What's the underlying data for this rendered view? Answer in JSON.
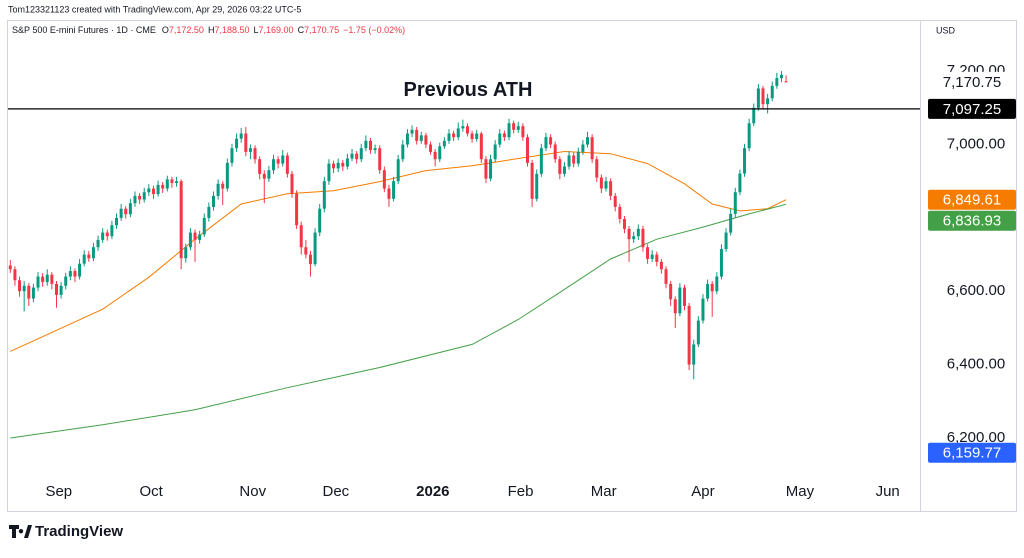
{
  "chart_data": {
    "type": "candlestick",
    "credit": "Tom123321123 created with TradingView.com, Apr 29, 2026 03:22 UTC-5",
    "legend": {
      "symbol": "S&P 500 E-mini Futures · 1D · CME",
      "fields": [
        {
          "key": "O",
          "text": "7,172.50"
        },
        {
          "key": "H",
          "text": "7,188.50"
        },
        {
          "key": "L",
          "text": "7,169.00"
        },
        {
          "key": "C",
          "text": "7,170.75"
        }
      ],
      "change": "−1.75 (−0.02%)"
    },
    "currency": "USD",
    "brand": "TradingView",
    "annotation": "Previous ATH",
    "up_color": "#089981",
    "down_color": "#f23645",
    "xlim": [
      -0.5,
      197
    ],
    "xticks": [
      {
        "value": 10.5,
        "label": "Sep"
      },
      {
        "value": 30.5,
        "label": "Oct"
      },
      {
        "value": 52.5,
        "label": "Nov"
      },
      {
        "value": 70.5,
        "label": "Dec"
      },
      {
        "value": 91.5,
        "label": "2026"
      },
      {
        "value": 110.5,
        "label": "Feb"
      },
      {
        "value": 128.5,
        "label": "Mar"
      },
      {
        "value": 150,
        "label": "Apr"
      },
      {
        "value": 171,
        "label": "May"
      },
      {
        "value": 190,
        "label": "Jun"
      }
    ],
    "ylim": [
      6099,
      7285
    ],
    "yticks": [
      {
        "value": 7200,
        "label": "7,200.00"
      },
      {
        "value": 7000,
        "label": "7,000.00"
      },
      {
        "value": 6600,
        "label": "6,600.00"
      },
      {
        "value": 6400,
        "label": "6,400.00"
      },
      {
        "value": 6200,
        "label": "6,200.00"
      }
    ],
    "hline": {
      "value": 7097.25,
      "color": "#000000"
    },
    "price_labels": [
      {
        "value": 7170.75,
        "label": "7,170.75",
        "color": "#ffffff",
        "text_color": "#131722"
      },
      {
        "value": 7097.25,
        "label": "7,097.25",
        "color": "#000000",
        "text_color": "#ffffff"
      },
      {
        "value": 6849.61,
        "label": "6,849.61",
        "color": "#f57c00",
        "text_color": "#ffffff"
      },
      {
        "value": 6836.93,
        "label": "6,836.93",
        "color": "#43a047",
        "text_color": "#ffffff"
      },
      {
        "value": 6159.77,
        "label": "6,159.77",
        "color": "#2962ff",
        "text_color": "#ffffff"
      }
    ],
    "series": [
      {
        "color": "#f57c00",
        "x": [
          0,
          20,
          30,
          40,
          50,
          60,
          70,
          80,
          90,
          100,
          110,
          120,
          130,
          138,
          146,
          152,
          158,
          164,
          168
        ],
        "values": [
          6436,
          6551,
          6638,
          6742,
          6838,
          6866,
          6874,
          6899,
          6929,
          6942,
          6962,
          6981,
          6975,
          6948,
          6893,
          6838,
          6819,
          6825,
          6849.61
        ]
      },
      {
        "color": "#43a047",
        "x": [
          0,
          20,
          40,
          60,
          80,
          100,
          110,
          120,
          130,
          140,
          150,
          160,
          168
        ],
        "values": [
          6200,
          6236,
          6277,
          6337,
          6392,
          6455,
          6523,
          6605,
          6688,
          6742,
          6775,
          6811,
          6836.93
        ]
      }
    ],
    "candles": [
      [
        6670,
        6685,
        6650,
        6660
      ],
      [
        6660,
        6668,
        6615,
        6630
      ],
      [
        6630,
        6640,
        6585,
        6600
      ],
      [
        6600,
        6628,
        6545,
        6615
      ],
      [
        6615,
        6622,
        6560,
        6580
      ],
      [
        6580,
        6620,
        6570,
        6610
      ],
      [
        6610,
        6652,
        6600,
        6640
      ],
      [
        6640,
        6650,
        6612,
        6625
      ],
      [
        6625,
        6660,
        6615,
        6645
      ],
      [
        6645,
        6652,
        6605,
        6620
      ],
      [
        6620,
        6628,
        6555,
        6590
      ],
      [
        6590,
        6625,
        6580,
        6615
      ],
      [
        6615,
        6650,
        6605,
        6640
      ],
      [
        6640,
        6668,
        6630,
        6655
      ],
      [
        6655,
        6662,
        6625,
        6640
      ],
      [
        6640,
        6688,
        6632,
        6675
      ],
      [
        6675,
        6712,
        6668,
        6700
      ],
      [
        6700,
        6710,
        6680,
        6690
      ],
      [
        6690,
        6732,
        6682,
        6720
      ],
      [
        6720,
        6752,
        6710,
        6740
      ],
      [
        6740,
        6772,
        6732,
        6760
      ],
      [
        6760,
        6768,
        6738,
        6750
      ],
      [
        6750,
        6792,
        6742,
        6780
      ],
      [
        6780,
        6812,
        6770,
        6800
      ],
      [
        6800,
        6838,
        6792,
        6825
      ],
      [
        6825,
        6832,
        6798,
        6810
      ],
      [
        6810,
        6852,
        6802,
        6840
      ],
      [
        6840,
        6872,
        6830,
        6860
      ],
      [
        6860,
        6868,
        6838,
        6850
      ],
      [
        6850,
        6882,
        6842,
        6870
      ],
      [
        6870,
        6892,
        6860,
        6880
      ],
      [
        6880,
        6888,
        6852,
        6865
      ],
      [
        6865,
        6902,
        6858,
        6890
      ],
      [
        6890,
        6898,
        6868,
        6880
      ],
      [
        6880,
        6915,
        6872,
        6905
      ],
      [
        6905,
        6912,
        6882,
        6895
      ],
      [
        6895,
        6912,
        6885,
        6900
      ],
      [
        6900,
        6905,
        6660,
        6690
      ],
      [
        6690,
        6730,
        6678,
        6720
      ],
      [
        6720,
        6772,
        6712,
        6760
      ],
      [
        6760,
        6768,
        6680,
        6740
      ],
      [
        6740,
        6765,
        6730,
        6755
      ],
      [
        6755,
        6812,
        6748,
        6800
      ],
      [
        6800,
        6842,
        6790,
        6830
      ],
      [
        6830,
        6872,
        6820,
        6860
      ],
      [
        6860,
        6905,
        6850,
        6893
      ],
      [
        6893,
        6900,
        6835,
        6880
      ],
      [
        6880,
        6962,
        6872,
        6950
      ],
      [
        6950,
        7002,
        6940,
        6990
      ],
      [
        6990,
        7030,
        6980,
        7016
      ],
      [
        7016,
        7045,
        7005,
        7030
      ],
      [
        7030,
        7048,
        6968,
        6980
      ],
      [
        6980,
        7000,
        6960,
        6990
      ],
      [
        6990,
        6998,
        6948,
        6960
      ],
      [
        6960,
        6968,
        6905,
        6920
      ],
      [
        6920,
        6930,
        6840,
        6907
      ],
      [
        6907,
        6942,
        6898,
        6930
      ],
      [
        6930,
        6972,
        6920,
        6960
      ],
      [
        6960,
        6968,
        6935,
        6948
      ],
      [
        6948,
        6985,
        6940,
        6970
      ],
      [
        6970,
        6978,
        6910,
        6920
      ],
      [
        6920,
        6928,
        6855,
        6866
      ],
      [
        6866,
        6875,
        6770,
        6780
      ],
      [
        6780,
        6790,
        6700,
        6720
      ],
      [
        6720,
        6740,
        6690,
        6700
      ],
      [
        6700,
        6710,
        6640,
        6674
      ],
      [
        6674,
        6772,
        6668,
        6760
      ],
      [
        6760,
        6838,
        6750,
        6825
      ],
      [
        6825,
        6912,
        6815,
        6900
      ],
      [
        6900,
        6960,
        6890,
        6948
      ],
      [
        6948,
        6956,
        6922,
        6935
      ],
      [
        6935,
        6962,
        6925,
        6950
      ],
      [
        6950,
        6958,
        6928,
        6940
      ],
      [
        6940,
        6975,
        6932,
        6962
      ],
      [
        6962,
        6988,
        6955,
        6975
      ],
      [
        6975,
        6982,
        6948,
        6960
      ],
      [
        6960,
        7002,
        6952,
        6990
      ],
      [
        6990,
        7025,
        6982,
        7010
      ],
      [
        7010,
        7018,
        6975,
        6985
      ],
      [
        6985,
        7000,
        6975,
        6990
      ],
      [
        6990,
        6998,
        6920,
        6930
      ],
      [
        6930,
        6940,
        6870,
        6880
      ],
      [
        6880,
        6890,
        6830,
        6852
      ],
      [
        6852,
        6912,
        6845,
        6900
      ],
      [
        6900,
        6972,
        6892,
        6960
      ],
      [
        6960,
        7012,
        6952,
        7000
      ],
      [
        7000,
        7042,
        6992,
        7030
      ],
      [
        7030,
        7052,
        7020,
        7040
      ],
      [
        7040,
        7048,
        7000,
        7010
      ],
      [
        7010,
        7035,
        7002,
        7025
      ],
      [
        7025,
        7032,
        6990,
        7000
      ],
      [
        7000,
        7008,
        6972,
        6980
      ],
      [
        6980,
        6988,
        6940,
        6960
      ],
      [
        6960,
        7005,
        6952,
        6995
      ],
      [
        6995,
        7020,
        6988,
        7010
      ],
      [
        7010,
        7042,
        7002,
        7030
      ],
      [
        7030,
        7038,
        7010,
        7020
      ],
      [
        7020,
        7060,
        7012,
        7044
      ],
      [
        7044,
        7068,
        7035,
        7050
      ],
      [
        7050,
        7058,
        7022,
        7030
      ],
      [
        7030,
        7038,
        7005,
        7015
      ],
      [
        7015,
        7040,
        7008,
        7030
      ],
      [
        7030,
        7035,
        6950,
        6960
      ],
      [
        6960,
        6968,
        6895,
        6907
      ],
      [
        6907,
        6972,
        6900,
        6960
      ],
      [
        6960,
        7012,
        6952,
        7000
      ],
      [
        7000,
        7042,
        6992,
        7030
      ],
      [
        7030,
        7038,
        7010,
        7020
      ],
      [
        7020,
        7070,
        7012,
        7058
      ],
      [
        7058,
        7065,
        7030,
        7040
      ],
      [
        7040,
        7062,
        7032,
        7050
      ],
      [
        7050,
        7058,
        7010,
        7020
      ],
      [
        7020,
        7028,
        6940,
        6950
      ],
      [
        6950,
        6958,
        6830,
        6852
      ],
      [
        6852,
        6932,
        6845,
        6920
      ],
      [
        6920,
        7002,
        6912,
        6990
      ],
      [
        6990,
        7032,
        6982,
        7020
      ],
      [
        7020,
        7028,
        6990,
        7000
      ],
      [
        7000,
        7008,
        6950,
        6960
      ],
      [
        6960,
        6968,
        6905,
        6920
      ],
      [
        6920,
        6952,
        6912,
        6940
      ],
      [
        6940,
        6982,
        6932,
        6970
      ],
      [
        6970,
        6978,
        6938,
        6948
      ],
      [
        6948,
        6992,
        6940,
        6980
      ],
      [
        6980,
        7012,
        6972,
        7000
      ],
      [
        7000,
        7035,
        6992,
        7020
      ],
      [
        7020,
        7028,
        6950,
        6960
      ],
      [
        6960,
        6968,
        6898,
        6910
      ],
      [
        6910,
        6918,
        6868,
        6880
      ],
      [
        6880,
        6912,
        6872,
        6900
      ],
      [
        6900,
        6908,
        6848,
        6860
      ],
      [
        6860,
        6868,
        6818,
        6830
      ],
      [
        6830,
        6838,
        6785,
        6797
      ],
      [
        6797,
        6805,
        6758,
        6770
      ],
      [
        6770,
        6778,
        6680,
        6742
      ],
      [
        6742,
        6762,
        6732,
        6750
      ],
      [
        6750,
        6782,
        6740,
        6770
      ],
      [
        6770,
        6778,
        6708,
        6720
      ],
      [
        6720,
        6728,
        6675,
        6688
      ],
      [
        6688,
        6712,
        6680,
        6700
      ],
      [
        6700,
        6708,
        6668,
        6680
      ],
      [
        6680,
        6688,
        6648,
        6660
      ],
      [
        6660,
        6668,
        6608,
        6620
      ],
      [
        6620,
        6628,
        6560,
        6578
      ],
      [
        6578,
        6586,
        6500,
        6540
      ],
      [
        6540,
        6622,
        6532,
        6610
      ],
      [
        6610,
        6618,
        6548,
        6560
      ],
      [
        6560,
        6568,
        6385,
        6400
      ],
      [
        6400,
        6468,
        6360,
        6455
      ],
      [
        6455,
        6532,
        6448,
        6520
      ],
      [
        6520,
        6592,
        6512,
        6580
      ],
      [
        6580,
        6632,
        6572,
        6620
      ],
      [
        6620,
        6628,
        6530,
        6600
      ],
      [
        6600,
        6652,
        6592,
        6640
      ],
      [
        6640,
        6728,
        6632,
        6715
      ],
      [
        6715,
        6772,
        6708,
        6760
      ],
      [
        6760,
        6825,
        6752,
        6811
      ],
      [
        6811,
        6882,
        6800,
        6870
      ],
      [
        6870,
        6932,
        6862,
        6921
      ],
      [
        6921,
        7002,
        6912,
        6990
      ],
      [
        6990,
        7070,
        6982,
        7058
      ],
      [
        7058,
        7112,
        7050,
        7100
      ],
      [
        7100,
        7165,
        7092,
        7153
      ],
      [
        7153,
        7160,
        7095,
        7110
      ],
      [
        7110,
        7138,
        7085,
        7126
      ],
      [
        7126,
        7172,
        7118,
        7160
      ],
      [
        7160,
        7195,
        7152,
        7181
      ],
      [
        7181,
        7200,
        7170,
        7190
      ],
      [
        7172.5,
        7188.5,
        7169,
        7170.75
      ]
    ]
  }
}
